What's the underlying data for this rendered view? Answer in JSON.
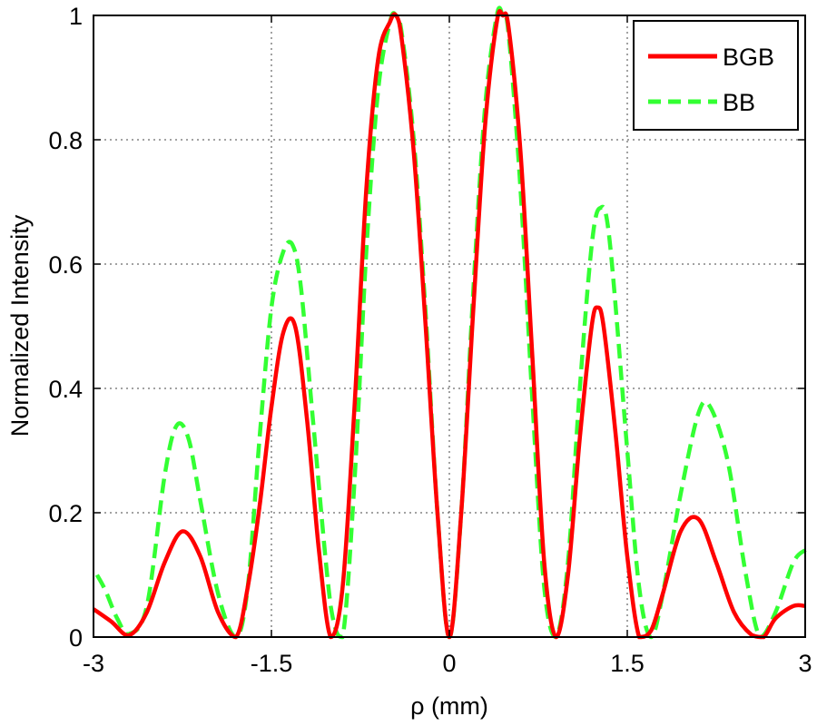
{
  "chart_data": {
    "type": "line",
    "title": "",
    "xlabel": "ρ (mm)",
    "ylabel": "Normalized  Intensity",
    "xlim": [
      -3,
      3
    ],
    "ylim": [
      0,
      1
    ],
    "xticks": [
      "-3",
      "-1.5",
      "0",
      "1.5",
      "3"
    ],
    "xtick_values": [
      -3,
      -1.5,
      0,
      1.5,
      3
    ],
    "yticks": [
      "0",
      "0.2",
      "0.4",
      "0.6",
      "0.8",
      "1"
    ],
    "ytick_values": [
      0,
      0.2,
      0.4,
      0.6,
      0.8,
      1
    ],
    "grid": true,
    "legend_position": "top-right",
    "series": [
      {
        "name": "BGB",
        "color": "#ff0000",
        "style": "solid",
        "x": [
          -3.0,
          -2.85,
          -2.7,
          -2.55,
          -2.4,
          -2.25,
          -2.1,
          -1.95,
          -1.8,
          -1.7,
          -1.6,
          -1.5,
          -1.4,
          -1.3,
          -1.2,
          -1.1,
          -1.0,
          -0.9,
          -0.8,
          -0.7,
          -0.6,
          -0.5,
          -0.45,
          -0.4,
          -0.3,
          -0.2,
          -0.1,
          0.0,
          0.1,
          0.2,
          0.3,
          0.4,
          0.45,
          0.5,
          0.6,
          0.7,
          0.8,
          0.9,
          1.0,
          1.1,
          1.2,
          1.25,
          1.3,
          1.4,
          1.5,
          1.6,
          1.7,
          1.8,
          1.95,
          2.1,
          2.25,
          2.4,
          2.55,
          2.65,
          2.75,
          2.9,
          3.0
        ],
        "values": [
          0.045,
          0.025,
          0.003,
          0.04,
          0.12,
          0.17,
          0.13,
          0.04,
          0.0,
          0.08,
          0.21,
          0.37,
          0.49,
          0.5,
          0.35,
          0.14,
          0.0,
          0.08,
          0.37,
          0.72,
          0.93,
          0.99,
          1.0,
          0.96,
          0.78,
          0.5,
          0.2,
          0.0,
          0.2,
          0.52,
          0.82,
          0.99,
          1.0,
          0.98,
          0.78,
          0.45,
          0.12,
          0.0,
          0.1,
          0.32,
          0.5,
          0.53,
          0.5,
          0.33,
          0.13,
          0.0,
          0.01,
          0.07,
          0.17,
          0.19,
          0.12,
          0.04,
          0.003,
          0.0,
          0.03,
          0.05,
          0.05
        ]
      },
      {
        "name": "BB",
        "color": "#33ff33",
        "style": "dashed",
        "x": [
          -2.97,
          -2.9,
          -2.8,
          -2.7,
          -2.55,
          -2.4,
          -2.3,
          -2.2,
          -2.1,
          -1.95,
          -1.8,
          -1.7,
          -1.6,
          -1.5,
          -1.4,
          -1.32,
          -1.25,
          -1.15,
          -1.0,
          -0.9,
          -0.8,
          -0.7,
          -0.6,
          -0.5,
          -0.45,
          -0.4,
          -0.3,
          -0.2,
          -0.1,
          0.0,
          0.1,
          0.2,
          0.3,
          0.4,
          0.45,
          0.5,
          0.6,
          0.7,
          0.8,
          0.9,
          1.0,
          1.1,
          1.2,
          1.27,
          1.35,
          1.5,
          1.6,
          1.7,
          1.8,
          1.95,
          2.1,
          2.2,
          2.35,
          2.5,
          2.62,
          2.75,
          2.9,
          3.0
        ],
        "values": [
          0.1,
          0.075,
          0.03,
          0.005,
          0.05,
          0.26,
          0.34,
          0.32,
          0.22,
          0.07,
          0.0,
          0.08,
          0.32,
          0.53,
          0.62,
          0.63,
          0.56,
          0.35,
          0.05,
          0.0,
          0.25,
          0.62,
          0.88,
          0.99,
          1.0,
          0.97,
          0.8,
          0.52,
          0.2,
          0.0,
          0.2,
          0.55,
          0.85,
          1.0,
          1.0,
          0.97,
          0.72,
          0.38,
          0.08,
          0.0,
          0.12,
          0.4,
          0.63,
          0.69,
          0.64,
          0.3,
          0.08,
          0.0,
          0.07,
          0.23,
          0.36,
          0.37,
          0.28,
          0.1,
          0.0,
          0.04,
          0.12,
          0.14
        ]
      }
    ]
  }
}
